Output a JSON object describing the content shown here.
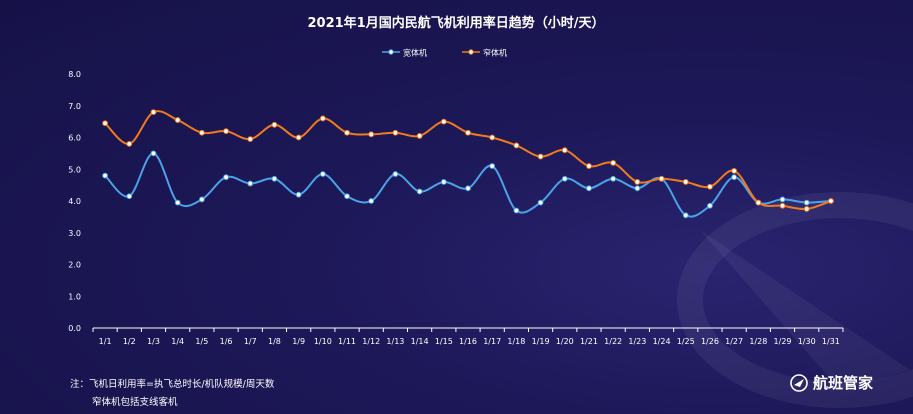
{
  "chart_data": {
    "type": "line",
    "title": "2021年1月国内民航飞机利用率日趋势（小时/天）",
    "categories": [
      "1/1",
      "1/2",
      "1/3",
      "1/4",
      "1/5",
      "1/6",
      "1/7",
      "1/8",
      "1/9",
      "1/10",
      "1/11",
      "1/12",
      "1/13",
      "1/14",
      "1/15",
      "1/16",
      "1/17",
      "1/18",
      "1/19",
      "1/20",
      "1/21",
      "1/22",
      "1/23",
      "1/24",
      "1/25",
      "1/26",
      "1/27",
      "1/28",
      "1/29",
      "1/30",
      "1/31"
    ],
    "ylim": [
      0,
      8
    ],
    "yticks": [
      "0.0",
      "1.0",
      "2.0",
      "3.0",
      "4.0",
      "5.0",
      "6.0",
      "7.0",
      "8.0"
    ],
    "legend_position": "top-center",
    "grid": false,
    "series": [
      {
        "name": "宽体机",
        "color": "#4aa3e8",
        "values": [
          4.8,
          4.15,
          5.5,
          3.95,
          4.05,
          4.75,
          4.55,
          4.7,
          4.2,
          4.85,
          4.15,
          4.0,
          4.85,
          4.3,
          4.6,
          4.4,
          5.1,
          3.7,
          3.95,
          4.7,
          4.4,
          4.7,
          4.4,
          4.7,
          3.55,
          3.85,
          4.75,
          3.95,
          4.05,
          3.95,
          4.0
        ]
      },
      {
        "name": "窄体机",
        "color": "#f07a1c",
        "values": [
          6.45,
          5.8,
          6.8,
          6.55,
          6.15,
          6.2,
          5.95,
          6.4,
          6.0,
          6.6,
          6.15,
          6.1,
          6.15,
          6.05,
          6.5,
          6.15,
          6.0,
          5.75,
          5.4,
          5.6,
          5.1,
          5.2,
          4.6,
          4.7,
          4.6,
          4.45,
          4.95,
          3.95,
          3.85,
          3.75,
          4.0
        ]
      }
    ]
  },
  "footer": {
    "note_line1": "注：飞机日利用率=执飞总时长/机队规模/周天数",
    "note_line2": "窄体机包括支线客机",
    "brand": "航班管家"
  }
}
